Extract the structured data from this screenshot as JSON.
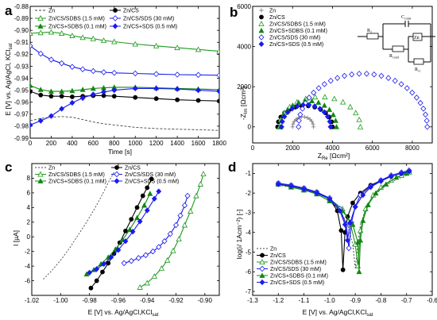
{
  "panels": {
    "a": {
      "letter": "a",
      "ylabel": "E [V] vs. Ag/AgCl, KCl",
      "ylabel_sub": "sat",
      "xlabel": "Time [s]"
    },
    "b": {
      "letter": "b",
      "ylabel": "-Z",
      "ylabel_sub": "Im",
      "ylabel_unit": " [Ωcm²]",
      "xlabel": "Z",
      "xlabel_sub": "Re",
      "xlabel_unit": " [Ωcm²]"
    },
    "c": {
      "letter": "c",
      "ylabel": "I [µA]",
      "xlabel": "E [V] vs. Ag/AgCl,KCl",
      "xlabel_sub": "sat"
    },
    "d": {
      "letter": "d",
      "ylabel": "log(i/ 1Acm⁻²) [-]",
      "xlabel": "E [V] vs. Ag/AgCl,KCl",
      "xlabel_sub": "sat"
    }
  },
  "circuit": {
    "r1": "R",
    "r1_sub": "1",
    "cconst": "C",
    "cconst_sub": "const",
    "zn": "Zn",
    "rcond": "R",
    "rcond_sub": "cond",
    "rct": "R",
    "rct_sub": "ct"
  },
  "colors": {
    "zn": "#444444",
    "zncs": "#000000",
    "cs_sdbs_1_5": "#1e9a1e",
    "cs_sds_30": "#1a1aee",
    "cs_sdbs_0_1": "#118811",
    "cs_sds_0_5": "#1a1aee"
  },
  "chart_data": [
    {
      "id": "a",
      "type": "line",
      "xlabel": "Time [s]",
      "ylabel": "E [V] vs. Ag/AgCl, KCl sat",
      "xlim": [
        0,
        1800
      ],
      "ylim": [
        -0.99,
        -0.88
      ],
      "xticks": [
        0,
        200,
        400,
        600,
        800,
        1000,
        1200,
        1400,
        1600,
        1800
      ],
      "yticks": [
        -0.99,
        -0.98,
        -0.97,
        -0.96,
        -0.95,
        -0.94,
        -0.93,
        -0.92,
        -0.91,
        -0.9,
        -0.89,
        -0.88
      ],
      "legend": [
        "Zn",
        "Zn/CS",
        "Zn/CS/SDBS (1.5 mM)",
        "Zn/CS/SDS (30 mM)",
        "Zn/CS+SDBS (0.1 mM)",
        "Zn/CS+SDS (0.5 mM)"
      ],
      "series": [
        {
          "name": "Zn",
          "color": "#444444",
          "dash": "3,2",
          "marker": "none",
          "x": [
            0,
            100,
            200,
            300,
            400,
            500,
            600,
            700,
            800,
            1000,
            1200,
            1400,
            1600,
            1800
          ],
          "y": [
            -0.9755,
            -0.9735,
            -0.9725,
            -0.972,
            -0.9725,
            -0.9745,
            -0.9765,
            -0.978,
            -0.979,
            -0.981,
            -0.982,
            -0.9825,
            -0.983,
            -0.9835
          ]
        },
        {
          "name": "Zn/CS",
          "color": "#000000",
          "marker": "circle-filled",
          "x": [
            0,
            100,
            200,
            300,
            400,
            500,
            600,
            700,
            800,
            1000,
            1200,
            1400,
            1600,
            1800
          ],
          "y": [
            -0.951,
            -0.954,
            -0.955,
            -0.955,
            -0.9555,
            -0.955,
            -0.9545,
            -0.9545,
            -0.955,
            -0.956,
            -0.957,
            -0.958,
            -0.9585,
            -0.959
          ]
        },
        {
          "name": "Zn/CS/SDBS (1.5 mM)",
          "color": "#1e9a1e",
          "marker": "triangle-open",
          "x": [
            0,
            100,
            200,
            300,
            400,
            500,
            600,
            700,
            800,
            1000,
            1200,
            1400,
            1600,
            1800
          ],
          "y": [
            -0.9025,
            -0.902,
            -0.9015,
            -0.9025,
            -0.9045,
            -0.906,
            -0.907,
            -0.9085,
            -0.9095,
            -0.9115,
            -0.913,
            -0.9145,
            -0.916,
            -0.9175
          ]
        },
        {
          "name": "Zn/CS/SDS (30 mM)",
          "color": "#1a1aee",
          "marker": "diamond-open",
          "x": [
            0,
            100,
            200,
            300,
            400,
            500,
            600,
            700,
            800,
            1000,
            1200,
            1400,
            1600,
            1800
          ],
          "y": [
            -0.913,
            -0.9195,
            -0.9245,
            -0.9275,
            -0.9305,
            -0.9325,
            -0.934,
            -0.935,
            -0.9355,
            -0.936,
            -0.9365,
            -0.937,
            -0.9372,
            -0.9375
          ]
        },
        {
          "name": "Zn/CS+SDBS (0.1 mM)",
          "color": "#118811",
          "marker": "triangle-filled",
          "x": [
            0,
            100,
            200,
            300,
            400,
            500,
            600,
            700,
            800,
            1000,
            1200,
            1400,
            1600,
            1800
          ],
          "y": [
            -0.946,
            -0.9495,
            -0.951,
            -0.951,
            -0.9505,
            -0.9495,
            -0.9485,
            -0.948,
            -0.9475,
            -0.9475,
            -0.948,
            -0.9485,
            -0.949,
            -0.9495
          ]
        },
        {
          "name": "Zn/CS+SDS (0.5 mM)",
          "color": "#1a1aee",
          "marker": "diamond-filled",
          "x": [
            0,
            100,
            200,
            300,
            400,
            500,
            600,
            700,
            800,
            1000,
            1200,
            1400,
            1600,
            1800
          ],
          "y": [
            -0.979,
            -0.9755,
            -0.9715,
            -0.9655,
            -0.9605,
            -0.9565,
            -0.9535,
            -0.9515,
            -0.95,
            -0.9485,
            -0.9485,
            -0.949,
            -0.95,
            -0.951
          ]
        }
      ]
    },
    {
      "id": "b",
      "type": "scatter",
      "xlabel": "Z Re [Ωcm²]",
      "ylabel": "-Z Im [Ωcm²]",
      "xlim": [
        0,
        9000
      ],
      "ylim": [
        -800,
        6000
      ],
      "xticks": [
        0,
        2000,
        4000,
        6000,
        8000
      ],
      "yticks": [
        0,
        2000,
        4000,
        6000
      ],
      "legend": [
        "Zn",
        "Zn/CS",
        "Zn/CS/SDBS (1.5 mM)",
        "Zn/CS+SDBS (0.1 mM)",
        "Zn/CS/SDS (30 mM)",
        "Zn/CS+SDS (0.5 mM)"
      ],
      "series": [
        {
          "name": "Zn",
          "color": "#888888",
          "marker": "plus",
          "arc": {
            "x0": 2000,
            "x1": 3050,
            "h": 500,
            "n": 12
          }
        },
        {
          "name": "Zn/CS",
          "color": "#000000",
          "marker": "circle-filled",
          "arc": {
            "x0": 1250,
            "x1": 4000,
            "h": 1050,
            "n": 14
          }
        },
        {
          "name": "Zn/CS/SDBS (1.5 mM)",
          "color": "#1e9a1e",
          "marker": "triangle-open",
          "arc": {
            "x0": 1350,
            "x1": 5400,
            "h": 1500,
            "n": 14
          }
        },
        {
          "name": "Zn/CS+SDBS (0.1 mM)",
          "color": "#118811",
          "marker": "triangle-filled",
          "arc": {
            "x0": 1400,
            "x1": 4200,
            "h": 1300,
            "n": 14
          }
        },
        {
          "name": "Zn/CS/SDS (30 mM)",
          "color": "#1a1aee",
          "marker": "diamond-open",
          "arc": {
            "x0": 2300,
            "x1": 8750,
            "h": 2650,
            "n": 28
          }
        },
        {
          "name": "Zn/CS+SDS (0.5 mM)",
          "color": "#1a1aee",
          "marker": "diamond-filled",
          "arc": {
            "x0": 1450,
            "x1": 3900,
            "h": 1100,
            "n": 14
          }
        }
      ]
    },
    {
      "id": "c",
      "type": "line",
      "xlabel": "E [V] vs. Ag/AgCl,KCl sat",
      "ylabel": "I [µA]",
      "xlim": [
        -1.02,
        -0.89
      ],
      "ylim": [
        -8,
        10
      ],
      "xticks": [
        -1.02,
        -1.0,
        -0.98,
        -0.96,
        -0.94,
        -0.92,
        -0.9
      ],
      "yticks": [
        -6,
        -4,
        -2,
        0,
        2,
        4,
        6,
        8
      ],
      "legend": [
        "Zn",
        "Zn/CS",
        "Zn/CS/SDBS (1.5 mM)",
        "Zn/CS/SDS (30 mM)",
        "Zn/CS+SDBS (0.1 mM)",
        "Zn/CS+SDS (0.5 mM)"
      ],
      "series": [
        {
          "name": "Zn",
          "color": "#444444",
          "dash": "2,2",
          "marker": "none",
          "x": [
            -1.012,
            -1.006,
            -1.0,
            -0.994,
            -0.988,
            -0.982,
            -0.976,
            -0.971,
            -0.967,
            -0.963
          ],
          "y": [
            -5.8,
            -4.6,
            -3.2,
            -1.6,
            0.2,
            2.0,
            4.0,
            5.8,
            7.4,
            8.8
          ]
        },
        {
          "name": "Zn/CS",
          "color": "#000000",
          "marker": "circle-filled",
          "x": [
            -0.979,
            -0.975,
            -0.971,
            -0.967,
            -0.963,
            -0.959,
            -0.955,
            -0.951,
            -0.947,
            -0.943,
            -0.94,
            -0.937
          ],
          "y": [
            -7.0,
            -6.0,
            -4.8,
            -3.6,
            -2.3,
            -0.8,
            0.8,
            2.4,
            4.0,
            5.6,
            6.7,
            7.9
          ]
        },
        {
          "name": "Zn/CS/SDBS (1.5 mM)",
          "color": "#1e9a1e",
          "marker": "triangle-open",
          "x": [
            -0.945,
            -0.94,
            -0.935,
            -0.93,
            -0.926,
            -0.922,
            -0.918,
            -0.914,
            -0.91,
            -0.906,
            -0.903,
            -0.901
          ],
          "y": [
            -6.9,
            -6.3,
            -5.4,
            -4.3,
            -3.2,
            -1.9,
            -0.3,
            1.6,
            3.5,
            5.6,
            7.2,
            8.6
          ]
        },
        {
          "name": "Zn/CS/SDS (30 mM)",
          "color": "#1a1aee",
          "marker": "diamond-open",
          "x": [
            -0.956,
            -0.951,
            -0.946,
            -0.941,
            -0.936,
            -0.932,
            -0.928,
            -0.924,
            -0.92,
            -0.917,
            -0.914,
            -0.912
          ],
          "y": [
            -3.6,
            -3.3,
            -2.9,
            -2.5,
            -2.0,
            -1.4,
            -0.6,
            0.4,
            1.6,
            2.9,
            4.3,
            5.6
          ]
        },
        {
          "name": "Zn/CS+SDBS (0.1 mM)",
          "color": "#118811",
          "marker": "triangle-filled",
          "x": [
            -0.982,
            -0.977,
            -0.972,
            -0.967,
            -0.962,
            -0.957,
            -0.952,
            -0.947,
            -0.942,
            -0.938
          ],
          "y": [
            -5.1,
            -4.5,
            -3.7,
            -2.8,
            -1.7,
            -0.4,
            1.0,
            2.6,
            4.3,
            5.9
          ]
        },
        {
          "name": "Zn/CS+SDS (0.5 mM)",
          "color": "#1a1aee",
          "marker": "diamond-filled",
          "x": [
            -0.98,
            -0.975,
            -0.97,
            -0.965,
            -0.96,
            -0.955,
            -0.95,
            -0.945,
            -0.94,
            -0.935,
            -0.932
          ],
          "y": [
            -4.9,
            -4.4,
            -3.7,
            -2.8,
            -1.8,
            -0.6,
            0.7,
            2.1,
            3.6,
            5.2,
            6.2
          ]
        }
      ]
    },
    {
      "id": "d",
      "type": "line",
      "xlabel": "E [V] vs. Ag/AgCl,KCl sat",
      "ylabel": "log(i/ 1Acm⁻²) [-]",
      "xlim": [
        -1.3,
        -0.6
      ],
      "ylim": [
        -7.2,
        -0.5
      ],
      "xticks": [
        -1.3,
        -1.2,
        -1.1,
        -1.0,
        -0.9,
        -0.8,
        -0.7,
        -0.6
      ],
      "yticks": [
        -7,
        -6,
        -5,
        -4,
        -3,
        -2,
        -1
      ],
      "legend": [
        "Zn",
        "Zn/CS",
        "Zn/CS/SDBS (1.5 mM)",
        "Zn/CS/SDS (30 mM)",
        "Zn/CS+SDBS (0.1 mM)",
        "Zn/CS+SDS (0.5 mM)"
      ],
      "series": [
        {
          "name": "Zn",
          "color": "#444444",
          "dash": "2,2",
          "marker": "none",
          "x": [
            -1.2,
            -1.15,
            -1.1,
            -1.05,
            -1.0,
            -0.96,
            -0.93,
            -0.91,
            -0.9,
            -0.89,
            -0.88,
            -0.86,
            -0.83,
            -0.8,
            -0.76,
            -0.72,
            -0.69
          ],
          "y": [
            -1.6,
            -1.7,
            -1.85,
            -2.05,
            -2.4,
            -2.9,
            -3.6,
            -4.6,
            -5.8,
            -4.6,
            -3.6,
            -2.8,
            -2.2,
            -1.8,
            -1.45,
            -1.2,
            -1.05
          ]
        },
        {
          "name": "Zn/CS",
          "color": "#000000",
          "marker": "circle-filled",
          "x": [
            -1.2,
            -1.15,
            -1.1,
            -1.05,
            -1.0,
            -0.97,
            -0.955,
            -0.948,
            -0.94,
            -0.93,
            -0.91,
            -0.88,
            -0.84,
            -0.8,
            -0.76,
            -0.72,
            -0.69
          ],
          "y": [
            -1.5,
            -1.6,
            -1.75,
            -1.95,
            -2.3,
            -2.9,
            -3.9,
            -5.9,
            -4.0,
            -3.2,
            -2.5,
            -2.0,
            -1.6,
            -1.35,
            -1.15,
            -1.0,
            -0.95
          ]
        },
        {
          "name": "Zn/CS/SDBS (1.5 mM)",
          "color": "#1e9a1e",
          "marker": "triangle-open",
          "x": [
            -1.2,
            -1.15,
            -1.1,
            -1.05,
            -1.0,
            -0.95,
            -0.92,
            -0.9,
            -0.89,
            -0.88,
            -0.86,
            -0.83,
            -0.8,
            -0.76,
            -0.72,
            -0.69
          ],
          "y": [
            -1.5,
            -1.65,
            -1.8,
            -2.0,
            -2.3,
            -2.8,
            -3.5,
            -4.6,
            -5.7,
            -3.9,
            -2.8,
            -2.1,
            -1.7,
            -1.35,
            -1.1,
            -0.95
          ]
        },
        {
          "name": "Zn/CS/SDS (30 mM)",
          "color": "#1a1aee",
          "marker": "diamond-open",
          "x": [
            -1.2,
            -1.15,
            -1.1,
            -1.05,
            -1.0,
            -0.96,
            -0.935,
            -0.925,
            -0.915,
            -0.9,
            -0.88,
            -0.84,
            -0.8,
            -0.76,
            -0.72,
            -0.69
          ],
          "y": [
            -1.5,
            -1.6,
            -1.75,
            -1.95,
            -2.25,
            -2.8,
            -3.6,
            -4.8,
            -3.5,
            -2.7,
            -2.1,
            -1.65,
            -1.35,
            -1.1,
            -0.95,
            -0.85
          ]
        },
        {
          "name": "Zn/CS+SDBS (0.1 mM)",
          "color": "#118811",
          "marker": "triangle-filled",
          "x": [
            -1.2,
            -1.15,
            -1.1,
            -1.05,
            -1.0,
            -0.95,
            -0.91,
            -0.89,
            -0.885,
            -0.88,
            -0.87,
            -0.85,
            -0.82,
            -0.78,
            -0.74,
            -0.7
          ],
          "y": [
            -1.55,
            -1.7,
            -1.85,
            -2.05,
            -2.4,
            -2.9,
            -3.6,
            -4.5,
            -6.0,
            -4.4,
            -3.4,
            -2.6,
            -2.0,
            -1.55,
            -1.2,
            -1.0
          ]
        },
        {
          "name": "Zn/CS+SDS (0.5 mM)",
          "color": "#1a1aee",
          "marker": "diamond-filled",
          "x": [
            -1.2,
            -1.15,
            -1.1,
            -1.05,
            -1.0,
            -0.96,
            -0.94,
            -0.93,
            -0.92,
            -0.9,
            -0.87,
            -0.84,
            -0.8,
            -0.76,
            -0.72,
            -0.69
          ],
          "y": [
            -1.55,
            -1.65,
            -1.8,
            -2.0,
            -2.3,
            -2.9,
            -3.6,
            -4.4,
            -3.5,
            -2.7,
            -2.1,
            -1.7,
            -1.4,
            -1.15,
            -1.0,
            -0.9
          ]
        }
      ]
    }
  ]
}
